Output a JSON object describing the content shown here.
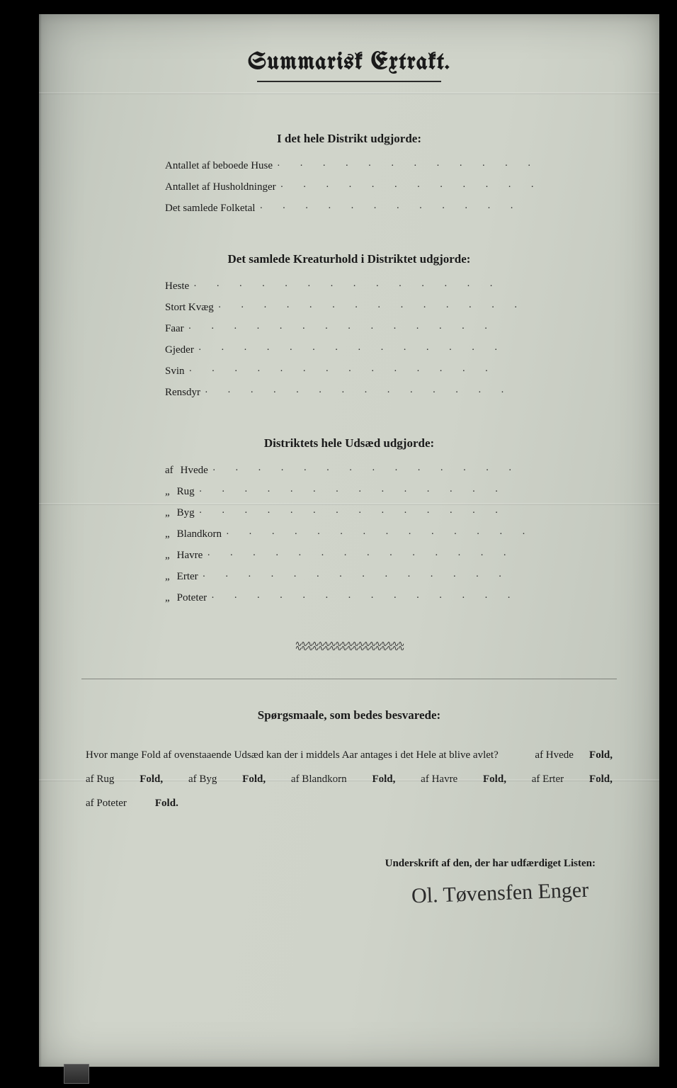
{
  "title": "Summarisk Extrakt.",
  "section1": {
    "heading": "I det hele Distrikt udgjorde:",
    "rows": [
      {
        "label": "Antallet af beboede Huse"
      },
      {
        "label": "Antallet af Husholdninger"
      },
      {
        "label": "Det samlede Folketal"
      }
    ]
  },
  "section2": {
    "heading": "Det samlede Kreaturhold i Distriktet udgjorde:",
    "rows": [
      {
        "label": "Heste"
      },
      {
        "label": "Stort Kvæg"
      },
      {
        "label": "Faar"
      },
      {
        "label": "Gjeder"
      },
      {
        "label": "Svin"
      },
      {
        "label": "Rensdyr"
      }
    ]
  },
  "section3": {
    "heading": "Distriktets hele Udsæd udgjorde:",
    "rows": [
      {
        "prefix": "af",
        "label": "Hvede"
      },
      {
        "prefix": "„",
        "label": "Rug"
      },
      {
        "prefix": "„",
        "label": "Byg"
      },
      {
        "prefix": "„",
        "label": "Blandkorn"
      },
      {
        "prefix": "„",
        "label": "Havre"
      },
      {
        "prefix": "„",
        "label": "Erter"
      },
      {
        "prefix": "„",
        "label": "Poteter"
      }
    ]
  },
  "questions": {
    "heading": "Spørgsmaale, som bedes besvarede:",
    "lead": "Hvor mange Fold af ovenstaaende Udsæd kan der i middels Aar antages i det Hele at blive avlet?",
    "items": {
      "hvede_prefix": "af Hvede",
      "rug_prefix": "af Rug",
      "byg_prefix": "af Byg",
      "bland_prefix": "af Blandkorn",
      "havre_prefix": "af Havre",
      "erter_prefix": "af Erter",
      "poteter_prefix": "af Poteter",
      "fold_word": "Fold,",
      "fold_word_end": "Fold."
    }
  },
  "signature": {
    "label": "Underskrift af den, der har udfærdiget Listen:",
    "value": "Ol. Tøvensfen Enger"
  },
  "colors": {
    "paper_mid": "#cfd3c9",
    "ink": "#1a1a1a",
    "frame": "#000000"
  }
}
